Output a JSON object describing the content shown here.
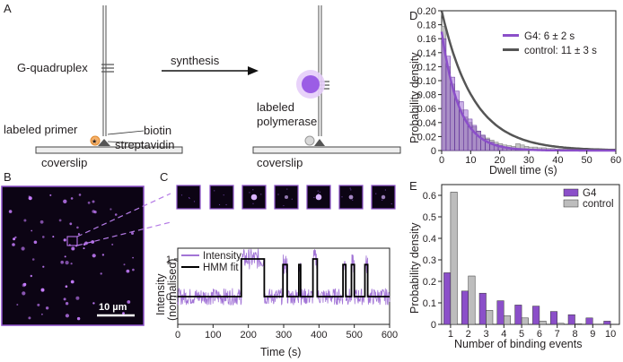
{
  "panel_labels": {
    "A": "A",
    "B": "B",
    "C": "C",
    "D": "D",
    "E": "E"
  },
  "colors": {
    "g4": "#8b4fc9",
    "control": "#bdbdbd",
    "control_line": "#555555",
    "hmm": "#000000",
    "microscopy_bg": "#0c0414",
    "spot": "#c77dff"
  },
  "schematic": {
    "g_quadruplex": "G-quadruplex",
    "synthesis": "synthesis",
    "labeled_primer": "labeled primer",
    "biotin": "biotin",
    "streptavidin": "streptavidin",
    "coverslip_left": "coverslip",
    "labeled_polymerase": "labeled\npolymerase",
    "coverslip_right": "coverslip"
  },
  "microscopy": {
    "scale_bar": "10 µm"
  },
  "trace": {
    "ylabel_1": "Intensity",
    "ylabel_2": "(normalised)",
    "xlabel": "Time (s)",
    "legend": [
      "Intensity",
      "HMM fit"
    ],
    "xticks": [
      "0",
      "100",
      "200",
      "300",
      "400",
      "500",
      "600"
    ],
    "yticks": [
      "0",
      "1"
    ]
  },
  "chart_data": [
    {
      "id": "D",
      "type": "bar",
      "title": "",
      "xlabel": "Dwell time (s)",
      "ylabel": "Probability density",
      "xlim": [
        0,
        60
      ],
      "ylim": [
        0,
        0.2
      ],
      "xticks": [
        "0",
        "10",
        "20",
        "30",
        "40",
        "50",
        "60"
      ],
      "yticks": [
        "0",
        "0.02",
        "0.04",
        "0.06",
        "0.08",
        "0.10",
        "0.12",
        "0.14",
        "0.16",
        "0.18",
        "0.20"
      ],
      "bin_width": 1.5,
      "series": [
        {
          "name": "G4: 6 ± 2 s",
          "fit_tau": 6,
          "values": [
            0.16,
            0.135,
            0.105,
            0.085,
            0.07,
            0.058,
            0.045,
            0.036,
            0.028,
            0.022,
            0.016,
            0.012,
            0.009,
            0.007,
            0.005,
            0.004,
            0.003,
            0.002,
            0.002,
            0.001
          ]
        },
        {
          "name": "control: 11 ± 3 s",
          "fit_tau": 11,
          "values": [
            0.178,
            0.12,
            0.095,
            0.072,
            0.058,
            0.048,
            0.04,
            0.034,
            0.027,
            0.021,
            0.018,
            0.015,
            0.012,
            0.01,
            0.008,
            0.007,
            0.006,
            0.01,
            0.008,
            0.006,
            0.005,
            0.005,
            0.004,
            0.004,
            0.003,
            0.003,
            0.002,
            0.002,
            0.002,
            0.002,
            0.002,
            0.001,
            0.001,
            0.002,
            0.001,
            0.001
          ]
        }
      ]
    },
    {
      "id": "E",
      "type": "bar",
      "title": "",
      "xlabel": "Number of binding events",
      "ylabel": "Probability density",
      "ylim": [
        0,
        0.65
      ],
      "categories": [
        "1",
        "2",
        "3",
        "4",
        "5",
        "6",
        "7",
        "8",
        "9",
        "10"
      ],
      "yticks": [
        "0",
        "0.1",
        "0.2",
        "0.3",
        "0.4",
        "0.5",
        "0.6"
      ],
      "series": [
        {
          "name": "G4",
          "values": [
            0.24,
            0.155,
            0.145,
            0.11,
            0.09,
            0.085,
            0.06,
            0.045,
            0.03,
            0.015
          ]
        },
        {
          "name": "control",
          "values": [
            0.615,
            0.225,
            0.065,
            0.04,
            0.03,
            0.015,
            0.005,
            0.003,
            0.0,
            0.0
          ]
        }
      ],
      "legend_position": "top-right"
    }
  ]
}
